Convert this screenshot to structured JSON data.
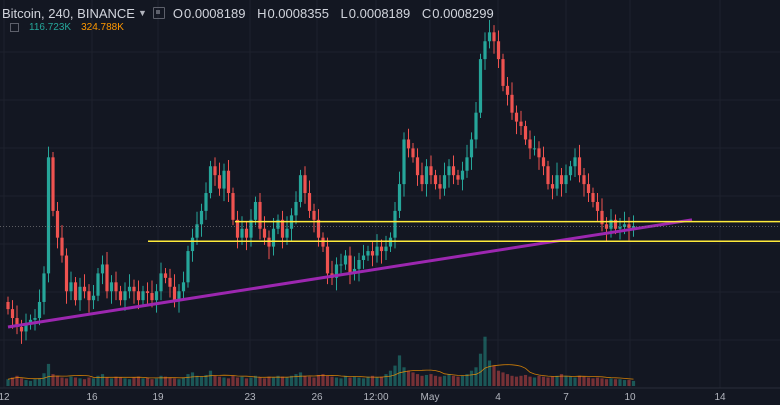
{
  "header": {
    "symbol": "Bitcoin, 240, BINANCE",
    "open_label": "O",
    "open_value": "0.0008189",
    "high_label": "H",
    "high_value": "0.0008355",
    "low_label": "L",
    "low_value": "0.0008189",
    "close_label": "C",
    "close_value": "0.0008299"
  },
  "volume": {
    "value1": "116.723K",
    "value2": "324.788K"
  },
  "colors": {
    "background": "#131722",
    "up": "#26a69a",
    "down": "#ef5350",
    "trendline": "#9c27b0",
    "levels": "#ffeb3b",
    "ma": "#ff9800"
  },
  "chart_data": {
    "type": "candlestick",
    "x_tick_labels": [
      "12",
      "16",
      "19",
      "23",
      "26",
      "12:00",
      "May",
      "4",
      "7",
      "10",
      "14"
    ],
    "y_range": [
      0.000595,
      0.001015
    ],
    "last_price": 0.0007725,
    "closes": [
      0.00068,
      0.00067,
      0.00066,
      0.000655,
      0.000663,
      0.000668,
      0.00067,
      0.000688,
      0.00072,
      0.00085,
      0.00079,
      0.00076,
      0.00074,
      0.0007,
      0.00071,
      0.00069,
      0.000705,
      0.0007,
      0.00069,
      0.000695,
      0.00072,
      0.00073,
      0.0007,
      0.00071,
      0.0007,
      0.00069,
      0.0007,
      0.000705,
      0.0007,
      0.00069,
      0.0007,
      0.000698,
      0.00069,
      0.0007,
      0.00072,
      0.000715,
      0.000705,
      0.00069,
      0.0007,
      0.00071,
      0.000745,
      0.00076,
      0.000775,
      0.00079,
      0.00081,
      0.00084,
      0.00083,
      0.000815,
      0.000835,
      0.00081,
      0.00078,
      0.00076,
      0.00077,
      0.00076,
      0.00078,
      0.0008,
      0.00077,
      0.00076,
      0.00075,
      0.00077,
      0.00078,
      0.00076,
      0.00077,
      0.000785,
      0.0008,
      0.00083,
      0.00081,
      0.00079,
      0.00078,
      0.00076,
      0.00075,
      0.00072,
      0.000715,
      0.00073,
      0.00073,
      0.00074,
      0.00072,
      0.000725,
      0.000735,
      0.00074,
      0.000745,
      0.00074,
      0.00075,
      0.000745,
      0.00075,
      0.00076,
      0.00079,
      0.00082,
      0.00087,
      0.00086,
      0.00085,
      0.00083,
      0.00082,
      0.00084,
      0.00083,
      0.00082,
      0.000815,
      0.00083,
      0.00084,
      0.00083,
      0.000825,
      0.000835,
      0.00085,
      0.00087,
      0.0009,
      0.00096,
      0.00098,
      0.00099,
      0.00098,
      0.00096,
      0.00093,
      0.00092,
      0.0009,
      0.00089,
      0.000885,
      0.00087,
      0.00086,
      0.00086,
      0.00085,
      0.00084,
      0.00082,
      0.000815,
      0.00083,
      0.00082,
      0.00083,
      0.00084,
      0.00085,
      0.00083,
      0.00082,
      0.00081,
      0.0008,
      0.00079,
      0.000775,
      0.00077,
      0.00078,
      0.00077,
      0.000772,
      0.000775,
      0.000771,
      0.000773
    ],
    "volumes": [
      8,
      10,
      12,
      9,
      7,
      6,
      8,
      9,
      15,
      26,
      14,
      12,
      10,
      9,
      11,
      10,
      9,
      8,
      10,
      9,
      12,
      14,
      10,
      9,
      11,
      10,
      9,
      8,
      10,
      11,
      9,
      10,
      8,
      9,
      12,
      11,
      10,
      9,
      8,
      10,
      14,
      16,
      12,
      11,
      13,
      18,
      12,
      11,
      10,
      9,
      12,
      10,
      11,
      9,
      10,
      12,
      10,
      9,
      11,
      10,
      12,
      11,
      10,
      12,
      14,
      16,
      12,
      11,
      10,
      13,
      14,
      12,
      11,
      10,
      9,
      12,
      10,
      11,
      10,
      9,
      11,
      12,
      10,
      11,
      14,
      18,
      24,
      36,
      22,
      18,
      16,
      14,
      12,
      13,
      14,
      12,
      11,
      12,
      14,
      12,
      11,
      12,
      14,
      18,
      22,
      38,
      58,
      30,
      24,
      18,
      16,
      14,
      12,
      11,
      12,
      13,
      11,
      10,
      12,
      11,
      10,
      11,
      12,
      14,
      12,
      11,
      10,
      12,
      11,
      10,
      9,
      10,
      9,
      8,
      9,
      8,
      8,
      7,
      7,
      6
    ],
    "trendline": {
      "from": [
        0,
        0.00066
      ],
      "to": [
        152,
        0.00078
      ]
    },
    "horizontal_levels": [
      0.000778,
      0.000756
    ]
  }
}
